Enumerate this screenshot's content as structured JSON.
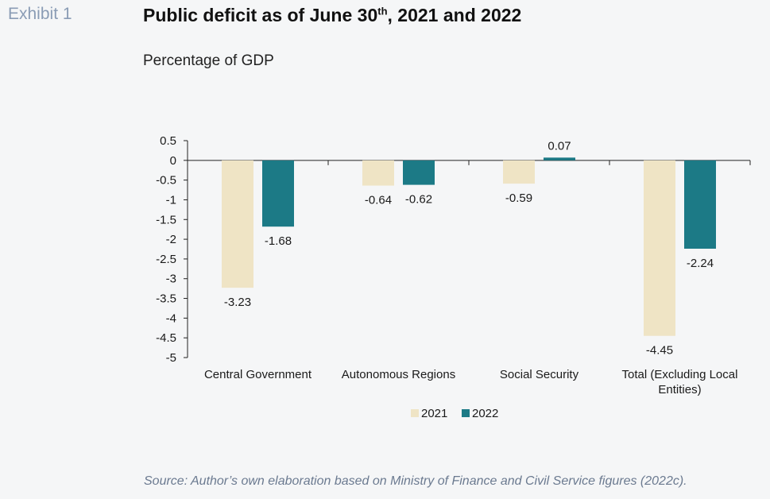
{
  "exhibit_label": "Exhibit 1",
  "title": {
    "before_sup": "Public deficit as of June 30",
    "sup": "th",
    "after_sup": ", 2021 and 2022"
  },
  "subtitle": "Percentage of GDP",
  "source": "Source: Author’s own elaboration based on Ministry of Finance and Civil Service figures (2022c).",
  "chart_data": {
    "type": "bar",
    "categories": [
      [
        "Central Government"
      ],
      [
        "Autonomous Regions"
      ],
      [
        "Social Security"
      ],
      [
        "Total (Excluding Local",
        "Entities)"
      ]
    ],
    "series": [
      {
        "name": "2021",
        "color": "#efe4c5",
        "values": [
          -3.23,
          -0.64,
          -0.59,
          -4.45
        ],
        "labels": [
          "-3.23",
          "-0.64",
          "-0.59",
          "-4.45"
        ]
      },
      {
        "name": "2022",
        "color": "#1c7a86",
        "values": [
          -1.68,
          -0.62,
          0.07,
          -2.24
        ],
        "labels": [
          "-1.68",
          "-0.62",
          "0.07",
          "-2.24"
        ]
      }
    ],
    "ylim": [
      -5,
      0.5
    ],
    "yticks": [
      "0.5",
      "0",
      "-0.5",
      "-1",
      "-1.5",
      "-2",
      "-2.5",
      "-3",
      "-3.5",
      "-4",
      "-4.5",
      "-5"
    ],
    "legend_position": "bottom",
    "grid": false
  }
}
